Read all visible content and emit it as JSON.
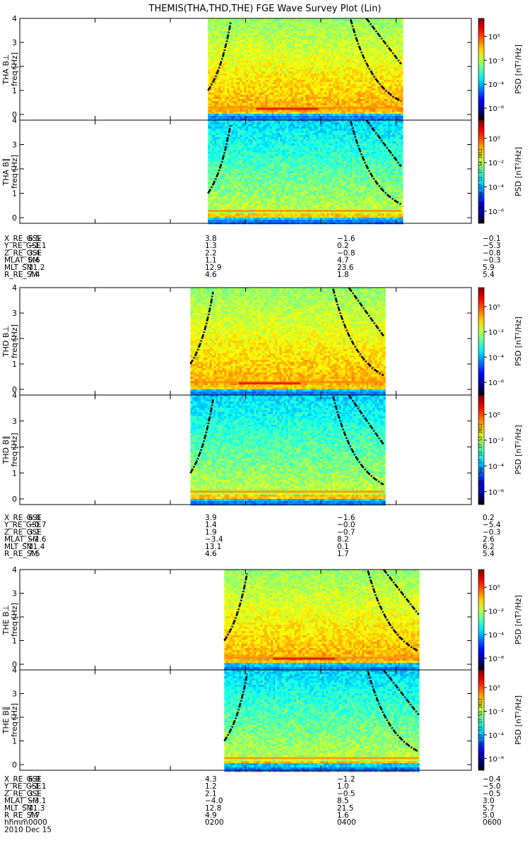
{
  "title": "THEMIS(THA,THD,THE) FGE Wave Survey Plot (Lin)",
  "date_label": "2010 Dec 15",
  "colorbar": {
    "label": "PSD [nT²/Hz]",
    "tick_labels": [
      "10⁰",
      "10⁻²",
      "10⁻⁴",
      "10⁻⁶"
    ],
    "log_values": [
      0,
      -2,
      -4,
      -6
    ],
    "range": [
      -7,
      1.5
    ],
    "stamps": [
      "Mon Sep 17 13:37:54 2012",
      "Mon Sep 17 13:37:53 2012",
      "Mon Sep 17 13:37:53 2012"
    ]
  },
  "chart_data": [
    {
      "type": "heatmap",
      "probe": "THA",
      "panels": [
        {
          "ylabel_top": "THA B⊥",
          "ylabel": "freq [Hz]"
        },
        {
          "ylabel_top": "THA B∥",
          "ylabel": "freq [Hz]"
        }
      ],
      "ylim": [
        0,
        4
      ],
      "y_ticks": [
        0,
        1,
        2,
        3,
        4
      ],
      "xlim": [
        "00:00",
        "06:00"
      ],
      "data_interval": [
        "02:30",
        "05:04"
      ],
      "ephemeris": {
        "times": [
          "0000",
          "0200",
          "0400",
          "0600"
        ],
        "rows": [
          {
            "label": "X_RE_GSE",
            "values": [
              "6.5",
              "3.8",
              "-1.6",
              "-0.1"
            ]
          },
          {
            "label": "Y_RE_GSE",
            "values": [
              "-1.1",
              "1.3",
              "0.2",
              "-5.3"
            ]
          },
          {
            "label": "Z_RE_GSE",
            "values": [
              "3.4",
              "2.2",
              "-0.8",
              "-0.8"
            ]
          },
          {
            "label": "MLAT_SM",
            "values": [
              "0.6",
              "1.1",
              "4.7",
              "-0.3"
            ]
          },
          {
            "label": "MLT_SM",
            "values": [
              "11.2",
              "12.9",
              "23.6",
              "5.9"
            ]
          },
          {
            "label": "R_RE_SM",
            "values": [
              "7.4",
              "4.6",
              "1.8",
              "5.4"
            ]
          }
        ]
      }
    },
    {
      "type": "heatmap",
      "probe": "THD",
      "panels": [
        {
          "ylabel_top": "THD B⊥",
          "ylabel": "freq [Hz]"
        },
        {
          "ylabel_top": "THD B∥",
          "ylabel": "freq [Hz]"
        }
      ],
      "ylim": [
        0,
        4
      ],
      "y_ticks": [
        0,
        1,
        2,
        3,
        4
      ],
      "xlim": [
        "00:00",
        "06:00"
      ],
      "data_interval": [
        "02:16",
        "04:50"
      ],
      "ephemeris": {
        "times": [
          "0000",
          "0200",
          "0400",
          "0600"
        ],
        "rows": [
          {
            "label": "X_RE_GSE",
            "values": [
              "6.8",
              "3.9",
              "-1.6",
              "0.2"
            ]
          },
          {
            "label": "Y_RE_GSE",
            "values": [
              "-0.7",
              "1.4",
              "-0.0",
              "-5.4"
            ]
          },
          {
            "label": "Z_RE_GSE",
            "values": [
              "3.1",
              "1.9",
              "-0.7",
              "-0.3"
            ]
          },
          {
            "label": "MLAT_SM",
            "values": [
              "-2.6",
              "-3.4",
              "8.2",
              "2.6"
            ]
          },
          {
            "label": "MLT_SM",
            "values": [
              "11.4",
              "13.1",
              "0.1",
              "6.2"
            ]
          },
          {
            "label": "R_RE_SM",
            "values": [
              "7.5",
              "4.6",
              "1.7",
              "5.4"
            ]
          }
        ]
      }
    },
    {
      "type": "heatmap",
      "probe": "THE",
      "panels": [
        {
          "ylabel_top": "THE B⊥",
          "ylabel": "freq [Hz]"
        },
        {
          "ylabel_top": "THE B∥",
          "ylabel": "freq [Hz]"
        }
      ],
      "ylim": [
        0,
        4
      ],
      "y_ticks": [
        0,
        1,
        2,
        3,
        4
      ],
      "xlim": [
        "00:00",
        "06:00"
      ],
      "data_interval": [
        "02:43",
        "05:18"
      ],
      "ephemeris": {
        "times": [
          "0000",
          "0200",
          "0400",
          "0600"
        ],
        "rows": [
          {
            "label": "X_RE_GSE",
            "values": [
              "6.9",
              "4.3",
              "-1.2",
              "-0.4"
            ]
          },
          {
            "label": "Y_RE_GSE",
            "values": [
              "-1.1",
              "1.2",
              "1.0",
              "-5.0"
            ]
          },
          {
            "label": "Z_RE_GSE",
            "values": [
              "3.1",
              "2.1",
              "-0.5",
              "-0.5"
            ]
          },
          {
            "label": "MLAT_SM",
            "values": [
              "-3.1",
              "-4.0",
              "8.5",
              "3.0"
            ]
          },
          {
            "label": "MLT_SM",
            "values": [
              "11.3",
              "12.8",
              "21.5",
              "5.7"
            ]
          },
          {
            "label": "R_RE_SM",
            "values": [
              "7.7",
              "4.9",
              "1.6",
              "5.0"
            ]
          }
        ]
      }
    }
  ],
  "x_axis_label": "hhmm"
}
